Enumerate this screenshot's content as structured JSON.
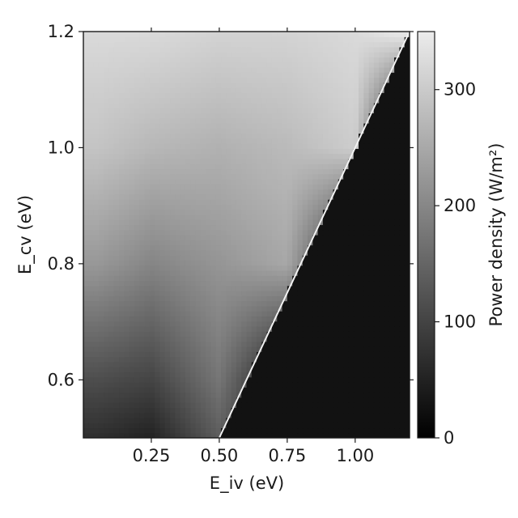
{
  "chart_data": {
    "type": "heatmap",
    "title": "",
    "xlabel": "E_iv (eV)",
    "ylabel": "E_cv (eV)",
    "xlim": [
      0.0,
      1.2
    ],
    "ylim": [
      0.5,
      1.2
    ],
    "x_ticks": [
      {
        "value": 0.25,
        "label": "0.25"
      },
      {
        "value": 0.5,
        "label": "0.50"
      },
      {
        "value": 0.75,
        "label": "0.75"
      },
      {
        "value": 1.0,
        "label": "1.00"
      }
    ],
    "y_ticks": [
      {
        "value": 0.6,
        "label": "0.6"
      },
      {
        "value": 0.8,
        "label": "0.8"
      },
      {
        "value": 1.0,
        "label": "1.0"
      },
      {
        "value": 1.2,
        "label": "1.2"
      }
    ],
    "colormap": "gray",
    "colorbar": {
      "label": "Power density (W/m²)",
      "range": [
        0,
        350
      ],
      "ticks": [
        {
          "value": 0,
          "label": "0"
        },
        {
          "value": 100,
          "label": "100"
        },
        {
          "value": 200,
          "label": "200"
        },
        {
          "value": 300,
          "label": "300"
        }
      ]
    },
    "boundary_line": {
      "from": [
        0.5,
        0.5
      ],
      "to": [
        1.2,
        1.2
      ],
      "note": "power density is 0 where E_iv > E_cv"
    },
    "z_samples": {
      "x": [
        0.05,
        0.25,
        0.5,
        0.75,
        1.0,
        1.15
      ],
      "y": [
        0.5,
        0.6,
        0.8,
        1.0,
        1.2
      ],
      "values": [
        [
          45,
          25,
          120,
          0,
          0,
          0
        ],
        [
          95,
          80,
          160,
          0,
          0,
          0
        ],
        [
          215,
          185,
          210,
          240,
          0,
          0
        ],
        [
          285,
          265,
          255,
          270,
          300,
          0
        ],
        [
          320,
          320,
          310,
          310,
          320,
          345
        ]
      ]
    }
  }
}
